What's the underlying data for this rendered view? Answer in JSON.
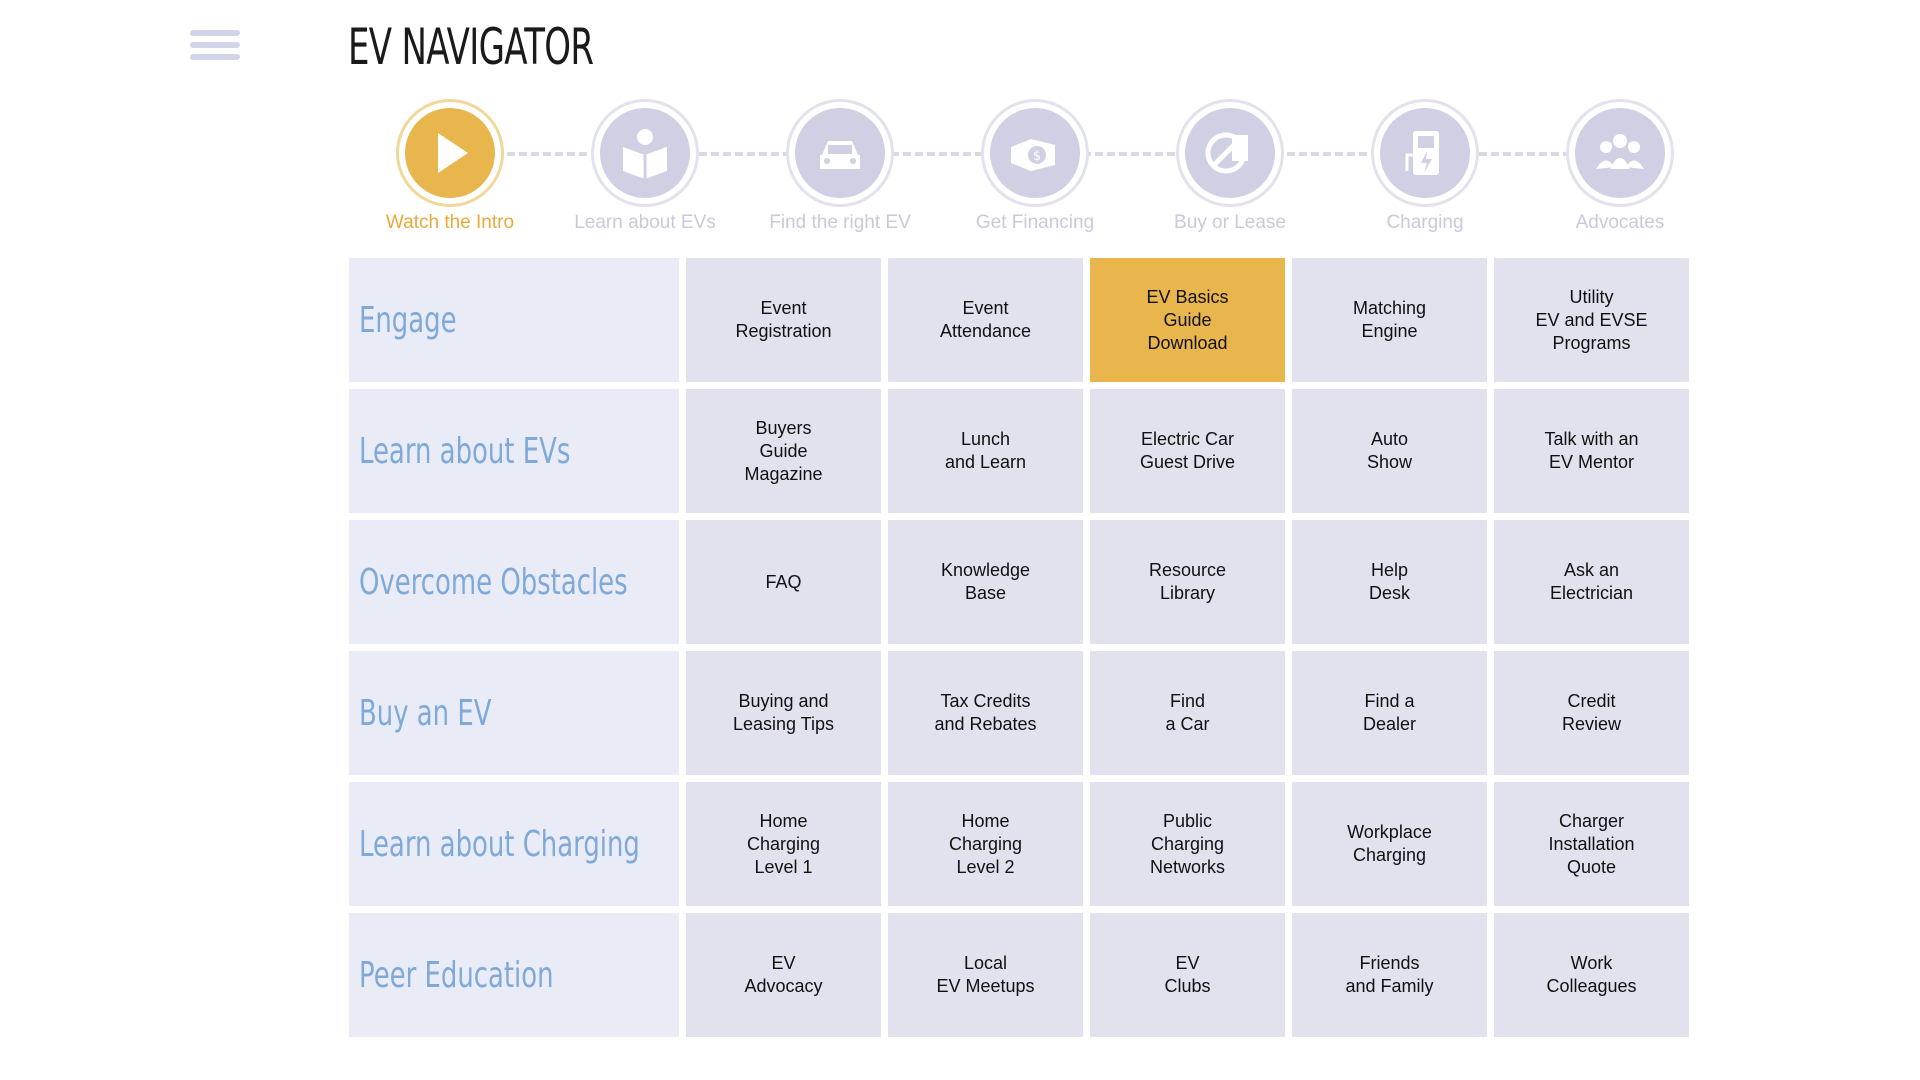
{
  "app": {
    "title": "EV NAVIGATOR",
    "menu_icon": "hamburger-menu-icon"
  },
  "steps": [
    {
      "label": "Watch the Intro",
      "icon": "play-icon",
      "active": true
    },
    {
      "label": "Learn about EVs",
      "icon": "book-reader-icon",
      "active": false
    },
    {
      "label": "Find the right EV",
      "icon": "car-icon",
      "active": false
    },
    {
      "label": "Get Financing",
      "icon": "money-hand-icon",
      "active": false
    },
    {
      "label": "Buy or Lease",
      "icon": "buy-lease-icon",
      "active": false
    },
    {
      "label": "Charging",
      "icon": "charging-station-icon",
      "active": false
    },
    {
      "label": "Advocates",
      "icon": "group-icon",
      "active": false
    }
  ],
  "grid": [
    {
      "head": "Engage",
      "cells": [
        "Event\nRegistration",
        "Event\nAttendance",
        "EV Basics\nGuide\nDownload",
        "Matching\nEngine",
        "Utility\nEV and EVSE\nPrograms"
      ]
    },
    {
      "head": "Learn about EVs",
      "cells": [
        "Buyers\nGuide\nMagazine",
        "Lunch\nand Learn",
        "Electric Car\nGuest Drive",
        "Auto\nShow",
        "Talk with an\nEV Mentor"
      ]
    },
    {
      "head": "Overcome Obstacles",
      "cells": [
        "FAQ",
        "Knowledge\nBase",
        "Resource\nLibrary",
        "Help\nDesk",
        "Ask an\nElectrician"
      ]
    },
    {
      "head": "Buy an EV",
      "cells": [
        "Buying and\nLeasing Tips",
        "Tax Credits\nand Rebates",
        "Find\na Car",
        "Find a\nDealer",
        "Credit\nReview"
      ]
    },
    {
      "head": "Learn about Charging",
      "cells": [
        "Home\nCharging\nLevel 1",
        "Home\nCharging\nLevel 2",
        "Public\nCharging\nNetworks",
        "Workplace\nCharging",
        "Charger\nInstallation\nQuote"
      ]
    },
    {
      "head": "Peer Education",
      "cells": [
        "EV\nAdvocacy",
        "Local\nEV Meetups",
        "EV\nClubs",
        "Friends\nand Family",
        "Work\nColleagues"
      ]
    }
  ],
  "highlight": {
    "row": 0,
    "col": 2
  },
  "colors": {
    "accent": "#e8b64c",
    "head_text": "#7ea9d8",
    "cell_bg": "#e2e2ee",
    "head_bg": "#e9ecf6"
  }
}
